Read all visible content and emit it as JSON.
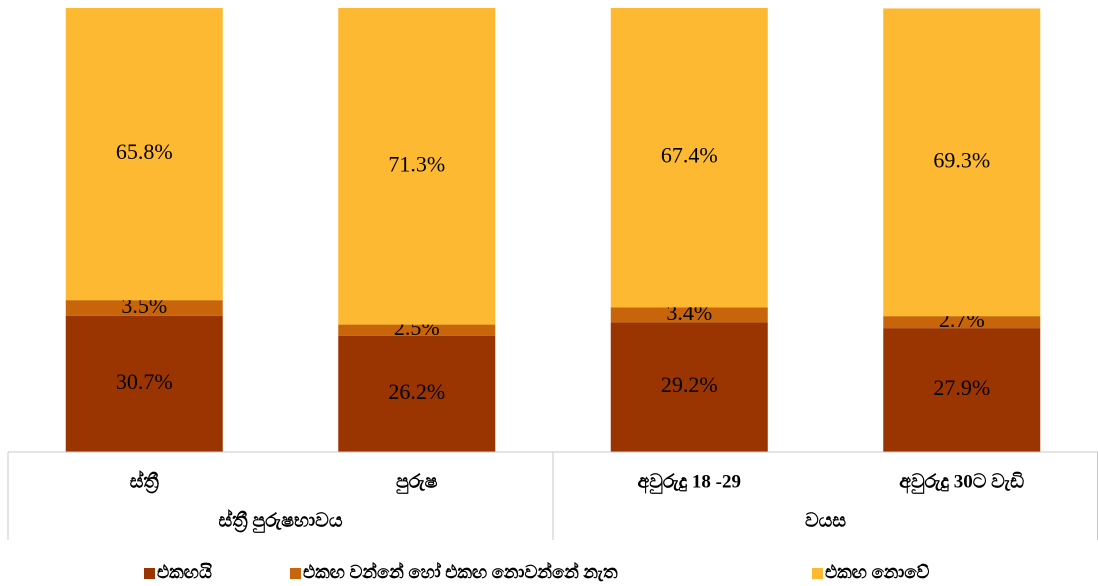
{
  "chart_data": {
    "type": "stacked_bar",
    "categories": [
      "ස්ත්‍රී",
      "පුරුෂ",
      "අවුරුදු 18 -29",
      "අවුරුදු 30ට වැඩි"
    ],
    "groups": [
      "ස්ත්‍රී පුරුෂභාවය",
      "වයස"
    ],
    "series": [
      {
        "name": "එකඟයි",
        "color": "#9a3400",
        "values": [
          30.7,
          26.2,
          29.2,
          27.9
        ],
        "value_labels": [
          "30.7%",
          "26.2%",
          "29.2%",
          "27.9%"
        ]
      },
      {
        "name": "එකඟ වන්නේ හෝ එකඟ නොවන්නේ නැත",
        "color": "#c8650a",
        "values": [
          3.5,
          2.5,
          3.4,
          2.7
        ],
        "value_labels": [
          "3.5%",
          "2.5%",
          "3.4%",
          "2.7%"
        ]
      },
      {
        "name": "එකඟ නොවේ",
        "color": "#fdb932",
        "values": [
          65.8,
          71.3,
          67.4,
          69.3
        ],
        "value_labels": [
          "65.8%",
          "71.3%",
          "67.4%",
          "69.3%"
        ]
      }
    ],
    "ylim": [
      0,
      100
    ],
    "legend": "bottom"
  }
}
